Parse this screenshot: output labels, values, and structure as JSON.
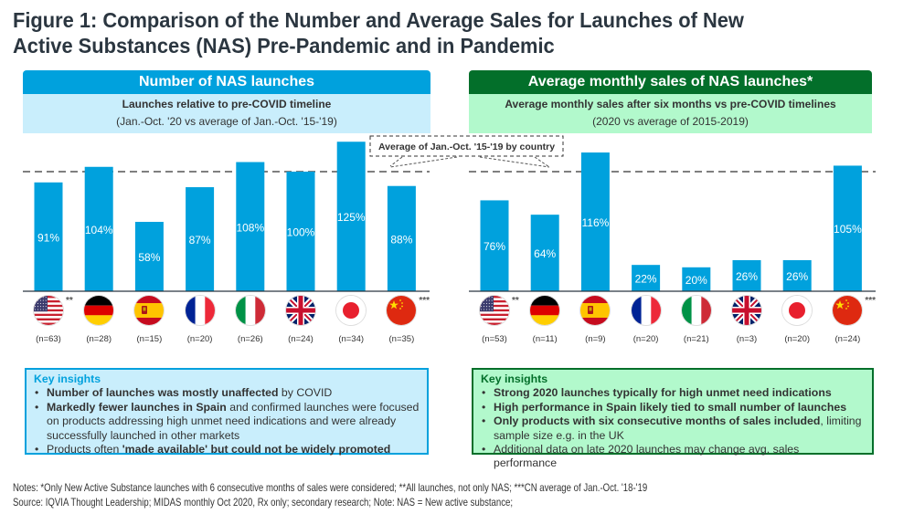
{
  "title": "Figure 1: Comparison of the Number and Average Sales for Launches of New Active Substances (NAS) Pre-Pandemic and in Pandemic",
  "title_lines": [
    "Figure 1: Comparison of the Number and Average Sales for Launches of New",
    "Active Substances (NAS) Pre-Pandemic and in Pandemic"
  ],
  "colors": {
    "left_accent": "#00a1dd",
    "left_light": "#c9eefc",
    "right_accent": "#036f2a",
    "right_light": "#b2f9cc",
    "bar": "#00a1dd",
    "dashed_line": "#333333"
  },
  "callout": "Average of Jan.-Oct. '15-'19 by country",
  "left_panel": {
    "header": "Number of NAS launches",
    "subtitle_bold": "Launches relative to pre-COVID timeline",
    "subtitle": "(Jan.-Oct. '20 vs average of Jan.-Oct. '15-'19)",
    "insights_title": "Key insights",
    "insights": [
      {
        "bold": "Number of launches was mostly unaffected",
        "rest": " by COVID"
      },
      {
        "bold": "Markedly fewer launches in Spain",
        "rest": " and confirmed launches were focused on products addressing high unmet need indications and were already successfully launched in other markets"
      },
      {
        "pre": "Products often ",
        "bold": "'made available' but could not be widely promoted",
        "rest": ""
      }
    ]
  },
  "right_panel": {
    "header": "Average monthly sales of NAS launches*",
    "subtitle_bold": "Average monthly sales after six months vs pre-COVID timelines",
    "subtitle": "(2020 vs average of 2015-2019)",
    "insights_title": "Key insights",
    "insights": [
      {
        "bold": "Strong 2020 launches typically for high unmet need indications",
        "rest": ""
      },
      {
        "bold": "High performance in Spain likely tied to small number of launches",
        "rest": ""
      },
      {
        "bold": "Only products with six consecutive months of sales included",
        "rest": ", limiting sample size e.g. in the UK"
      },
      {
        "bold": "",
        "rest": "Additional data on late 2020 launches may change avg. sales performance"
      }
    ]
  },
  "chart_data": [
    {
      "type": "bar",
      "title": "Number of NAS launches",
      "subtitle": "Launches relative to pre-COVID timeline (Jan.-Oct. '20 vs average of Jan.-Oct. '15-'19)",
      "categories": [
        "US",
        "Germany",
        "Spain",
        "France",
        "Italy",
        "UK",
        "Japan",
        "China"
      ],
      "icons": [
        "flag-us-icon",
        "flag-de-icon",
        "flag-es-icon",
        "flag-fr-icon",
        "flag-it-icon",
        "flag-uk-icon",
        "flag-jp-icon",
        "flag-cn-icon"
      ],
      "values": [
        91,
        104,
        58,
        87,
        108,
        100,
        125,
        88
      ],
      "labels": [
        "91%",
        "104%",
        "58%",
        "87%",
        "108%",
        "100%",
        "125%",
        "88%"
      ],
      "n": [
        "(n=63)",
        "(n=28)",
        "(n=15)",
        "(n=20)",
        "(n=26)",
        "(n=24)",
        "(n=34)",
        "(n=35)"
      ],
      "footnote_marks": {
        "US": "**",
        "China": "***"
      },
      "reference_line": {
        "value": 100,
        "label": "Average of Jan.-Oct. '15-'19 by country"
      },
      "xlabel": "",
      "ylabel": "",
      "ylim": [
        0,
        130
      ],
      "grid": false,
      "legend": "none"
    },
    {
      "type": "bar",
      "title": "Average monthly sales of NAS launches*",
      "subtitle": "Average monthly sales after six months vs pre-COVID timelines (2020 vs average of 2015-2019)",
      "categories": [
        "US",
        "Germany",
        "Spain",
        "France",
        "Italy",
        "UK",
        "Japan",
        "China"
      ],
      "icons": [
        "flag-us-icon",
        "flag-de-icon",
        "flag-es-icon",
        "flag-fr-icon",
        "flag-it-icon",
        "flag-uk-icon",
        "flag-jp-icon",
        "flag-cn-icon"
      ],
      "values": [
        76,
        64,
        116,
        22,
        20,
        26,
        26,
        105
      ],
      "labels": [
        "76%",
        "64%",
        "116%",
        "22%",
        "20%",
        "26%",
        "26%",
        "105%"
      ],
      "n": [
        "(n=53)",
        "(n=11)",
        "(n=9)",
        "(n=20)",
        "(n=21)",
        "(n=3)",
        "(n=20)",
        "(n=24)"
      ],
      "footnote_marks": {
        "US": "**",
        "China": "***"
      },
      "reference_line": {
        "value": 100,
        "label": "Average of Jan.-Oct. '15-'19 by country"
      },
      "xlabel": "",
      "ylabel": "",
      "ylim": [
        0,
        130
      ],
      "grid": false,
      "legend": "none"
    }
  ],
  "notes": {
    "line1": "Notes: *Only New Active Substance launches with 6 consecutive months of sales were considered; **All launches, not only NAS; ***CN average of Jan.-Oct. '18-'19",
    "line2": "Source: IQVIA Thought Leadership; MIDAS monthly Oct 2020, Rx only; secondary research;  Note: NAS = New active substance;"
  }
}
